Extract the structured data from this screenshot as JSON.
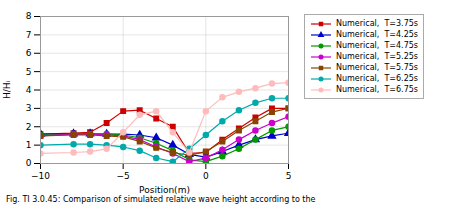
{
  "chart_data": {
    "type": "line",
    "xlabel": "Position(m)",
    "ylabel": "H/Hᵢ",
    "caption": "Fig. TI 3.0.45: Comparison of simulated relative wave height according to the",
    "x": [
      -10,
      -8,
      -7,
      -6,
      -5,
      -4,
      -3,
      -2,
      -1,
      0,
      1,
      2,
      3,
      4,
      5
    ],
    "series": [
      {
        "name": "Numerical,  T=3.75s",
        "color": "#cc0000",
        "marker": "square",
        "values": [
          1.6,
          1.65,
          1.7,
          2.2,
          2.85,
          2.9,
          2.45,
          2.0,
          0.55,
          0.6,
          1.3,
          1.9,
          2.5,
          3.0,
          3.0
        ]
      },
      {
        "name": "Numerical,  T=4.25s",
        "color": "#0000cc",
        "marker": "triangle",
        "values": [
          1.6,
          1.62,
          1.62,
          1.6,
          1.6,
          1.55,
          1.4,
          1.0,
          0.5,
          0.35,
          0.65,
          1.0,
          1.3,
          1.5,
          1.65
        ]
      },
      {
        "name": "Numerical,  T=4.75s",
        "color": "#009900",
        "marker": "circle",
        "values": [
          1.55,
          1.6,
          1.6,
          1.6,
          1.55,
          1.4,
          1.1,
          0.7,
          0.2,
          0.1,
          0.4,
          0.8,
          1.3,
          1.8,
          2.0
        ]
      },
      {
        "name": "Numerical,  T=5.25s",
        "color": "#cc00cc",
        "marker": "circle",
        "values": [
          1.5,
          1.6,
          1.6,
          1.55,
          1.5,
          1.3,
          0.9,
          0.55,
          0.1,
          0.3,
          0.75,
          1.3,
          1.8,
          2.2,
          2.55
        ]
      },
      {
        "name": "Numerical,  T=5.75s",
        "color": "#884400",
        "marker": "square",
        "values": [
          1.5,
          1.55,
          1.55,
          1.5,
          1.45,
          1.2,
          0.85,
          0.6,
          0.45,
          0.65,
          1.2,
          1.8,
          2.3,
          2.8,
          3.0
        ]
      },
      {
        "name": "Numerical,  T=6.25s",
        "color": "#00aaaa",
        "marker": "circle",
        "values": [
          1.0,
          1.05,
          1.05,
          1.0,
          0.9,
          0.7,
          0.3,
          0.1,
          0.8,
          1.55,
          2.3,
          2.9,
          3.3,
          3.55,
          3.55
        ]
      },
      {
        "name": "Numerical,  T=6.75s",
        "color": "#ffbbbb",
        "marker": "circle",
        "values": [
          0.55,
          0.6,
          0.65,
          0.8,
          1.7,
          2.65,
          2.85,
          1.7,
          0.6,
          2.85,
          3.6,
          3.9,
          4.1,
          4.35,
          4.4
        ]
      }
    ],
    "xlim": [
      -10,
      5
    ],
    "ylim": [
      0,
      8
    ],
    "xticks": [
      -10,
      -5,
      0,
      5
    ],
    "yticks": [
      0,
      1,
      2,
      3,
      4,
      5,
      6,
      7,
      8
    ],
    "grid": true,
    "legend": "right"
  }
}
